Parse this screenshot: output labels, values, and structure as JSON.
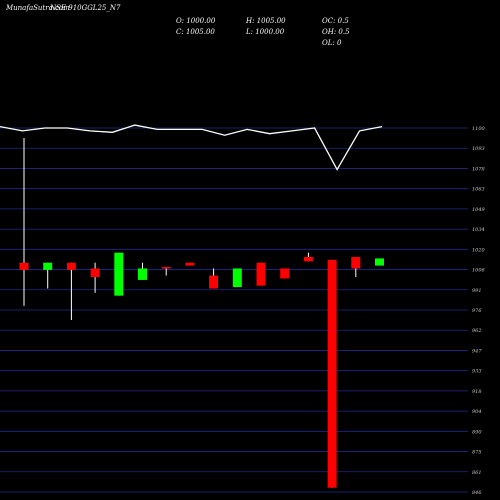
{
  "header": {
    "title": "MunafaSutra.com",
    "ticker": "NSE 910GGL25_N7"
  },
  "ohlc": {
    "open": "O: 1000.00",
    "high": "H: 1005.00",
    "close": "C: 1005.00",
    "low": "L: 1000.00",
    "oc": "OC: 0.5",
    "oh": "OH: 0.5",
    "ol": "OL: 0"
  },
  "colors": {
    "background": "#000000",
    "up": "#00ff00",
    "down": "#ff0000",
    "line": "#ffffff",
    "grid": "#1e2a8c",
    "wick": "#ffffff"
  },
  "chart_data": {
    "type": "candlestick",
    "y_tick_labels": [
      "1100",
      "1093",
      "1078",
      "1063",
      "1049",
      "1034",
      "1020",
      "1006",
      "991",
      "976",
      "962",
      "947",
      "933",
      "918",
      "904",
      "890",
      "875",
      "861",
      "846"
    ],
    "ylim": [
      846,
      1100
    ],
    "candles": [
      {
        "open": 1006,
        "high": 1093,
        "low": 976,
        "close": 1001,
        "color": "down"
      },
      {
        "open": 1001,
        "high": 1006,
        "low": 988,
        "close": 1006,
        "color": "up"
      },
      {
        "open": 1006,
        "high": 1006,
        "low": 966,
        "close": 1001,
        "color": "down"
      },
      {
        "open": 1002,
        "high": 1006,
        "low": 985,
        "close": 996,
        "color": "down"
      },
      {
        "open": 983,
        "high": 1013,
        "low": 983,
        "close": 1013,
        "color": "up"
      },
      {
        "open": 994,
        "high": 1006,
        "low": 994,
        "close": 1002,
        "color": "up"
      },
      {
        "open": 1003,
        "high": 1003,
        "low": 997,
        "close": 1002,
        "color": "down"
      },
      {
        "open": 1006,
        "high": 1006,
        "low": 1004,
        "close": 1004,
        "color": "down"
      },
      {
        "open": 997,
        "high": 1002,
        "low": 988,
        "close": 988,
        "color": "down"
      },
      {
        "open": 989,
        "high": 1002,
        "low": 989,
        "close": 1002,
        "color": "up"
      },
      {
        "open": 1006,
        "high": 1006,
        "low": 990,
        "close": 990,
        "color": "down"
      },
      {
        "open": 1002,
        "high": 1002,
        "low": 995,
        "close": 995,
        "color": "down"
      },
      {
        "open": 1010,
        "high": 1013,
        "low": 1007,
        "close": 1007,
        "color": "down"
      },
      {
        "open": 1008,
        "high": 1008,
        "low": 849,
        "close": 849,
        "color": "down"
      },
      {
        "open": 1010,
        "high": 1010,
        "low": 996,
        "close": 1002,
        "color": "down"
      },
      {
        "open": 1004,
        "high": 1009,
        "low": 1004,
        "close": 1009,
        "color": "up"
      }
    ],
    "line": [
      1101,
      1098,
      1100,
      1100,
      1098,
      1097,
      1102,
      1099,
      1099,
      1099,
      1095,
      1099,
      1096,
      1098,
      1100,
      1071,
      1098,
      1101
    ]
  }
}
